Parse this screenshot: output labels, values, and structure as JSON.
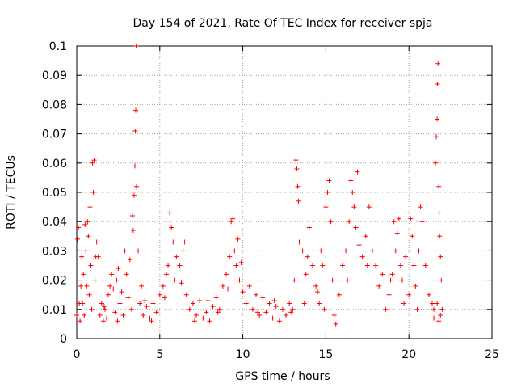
{
  "chart_data": {
    "type": "scatter",
    "title": "Day 154 of 2021, Rate Of TEC Index for receiver spja",
    "xlabel": "GPS time / hours",
    "ylabel": "ROTI / TECUs",
    "xlim": [
      0,
      25
    ],
    "ylim": [
      0,
      0.1
    ],
    "x_ticks": [
      0,
      5,
      10,
      15,
      20,
      25
    ],
    "x_tick_labels": [
      "0",
      "5",
      "10",
      "15",
      "20",
      "25"
    ],
    "y_ticks": [
      0,
      0.01,
      0.02,
      0.03,
      0.04,
      0.05,
      0.06,
      0.07,
      0.08,
      0.09,
      0.1
    ],
    "y_tick_labels": [
      "0",
      "0.01",
      "0.02",
      "0.03",
      "0.04",
      "0.05",
      "0.06",
      "0.07",
      "0.08",
      "0.09",
      "0.1"
    ],
    "grid": true,
    "marker": "+",
    "color": "#ff0000",
    "points": [
      [
        0.0,
        0.008
      ],
      [
        0.05,
        0.034
      ],
      [
        0.1,
        0.038
      ],
      [
        0.15,
        0.012
      ],
      [
        0.2,
        0.006
      ],
      [
        0.3,
        0.028
      ],
      [
        0.4,
        0.022
      ],
      [
        0.5,
        0.039
      ],
      [
        0.55,
        0.03
      ],
      [
        0.6,
        0.018
      ],
      [
        0.65,
        0.04
      ],
      [
        0.7,
        0.035
      ],
      [
        0.75,
        0.015
      ],
      [
        0.8,
        0.045
      ],
      [
        0.85,
        0.025
      ],
      [
        0.9,
        0.01
      ],
      [
        0.95,
        0.06
      ],
      [
        1.0,
        0.05
      ],
      [
        1.05,
        0.061
      ],
      [
        1.1,
        0.02
      ],
      [
        1.2,
        0.033
      ],
      [
        1.3,
        0.028
      ],
      [
        1.4,
        0.008
      ],
      [
        1.5,
        0.012
      ],
      [
        1.6,
        0.006
      ],
      [
        1.7,
        0.01
      ],
      [
        1.8,
        0.007
      ],
      [
        1.9,
        0.015
      ],
      [
        2.0,
        0.018
      ],
      [
        2.1,
        0.022
      ],
      [
        2.2,
        0.017
      ],
      [
        2.3,
        0.009
      ],
      [
        2.4,
        0.02
      ],
      [
        2.5,
        0.024
      ],
      [
        2.6,
        0.012
      ],
      [
        2.7,
        0.016
      ],
      [
        2.8,
        0.008
      ],
      [
        2.9,
        0.03
      ],
      [
        3.0,
        0.022
      ],
      [
        3.1,
        0.014
      ],
      [
        3.2,
        0.027
      ],
      [
        3.3,
        0.01
      ],
      [
        3.4,
        0.037
      ],
      [
        3.45,
        0.049
      ],
      [
        3.5,
        0.059
      ],
      [
        3.52,
        0.071
      ],
      [
        3.55,
        0.078
      ],
      [
        3.58,
        0.1
      ],
      [
        3.6,
        0.052
      ],
      [
        3.7,
        0.03
      ],
      [
        3.8,
        0.012
      ],
      [
        3.9,
        0.018
      ],
      [
        4.0,
        0.008
      ],
      [
        4.2,
        0.011
      ],
      [
        4.4,
        0.007
      ],
      [
        4.6,
        0.012
      ],
      [
        4.8,
        0.009
      ],
      [
        5.0,
        0.015
      ],
      [
        5.2,
        0.018
      ],
      [
        5.4,
        0.022
      ],
      [
        5.5,
        0.025
      ],
      [
        5.6,
        0.043
      ],
      [
        5.7,
        0.038
      ],
      [
        5.8,
        0.033
      ],
      [
        5.9,
        0.02
      ],
      [
        6.0,
        0.028
      ],
      [
        6.2,
        0.025
      ],
      [
        6.4,
        0.03
      ],
      [
        6.5,
        0.033
      ],
      [
        6.6,
        0.015
      ],
      [
        6.8,
        0.01
      ],
      [
        7.0,
        0.012
      ],
      [
        7.2,
        0.008
      ],
      [
        7.4,
        0.013
      ],
      [
        7.6,
        0.007
      ],
      [
        7.8,
        0.009
      ],
      [
        8.0,
        0.006
      ],
      [
        8.2,
        0.011
      ],
      [
        8.4,
        0.014
      ],
      [
        8.6,
        0.01
      ],
      [
        8.8,
        0.018
      ],
      [
        9.0,
        0.022
      ],
      [
        9.2,
        0.028
      ],
      [
        9.3,
        0.04
      ],
      [
        9.4,
        0.041
      ],
      [
        9.5,
        0.03
      ],
      [
        9.6,
        0.025
      ],
      [
        9.7,
        0.034
      ],
      [
        9.8,
        0.02
      ],
      [
        10.0,
        0.016
      ],
      [
        10.2,
        0.012
      ],
      [
        10.4,
        0.018
      ],
      [
        10.6,
        0.01
      ],
      [
        10.8,
        0.015
      ],
      [
        11.0,
        0.008
      ],
      [
        11.2,
        0.014
      ],
      [
        11.4,
        0.009
      ],
      [
        11.6,
        0.012
      ],
      [
        11.8,
        0.007
      ],
      [
        12.0,
        0.011
      ],
      [
        12.2,
        0.006
      ],
      [
        12.4,
        0.01
      ],
      [
        12.6,
        0.008
      ],
      [
        12.8,
        0.012
      ],
      [
        13.0,
        0.01
      ],
      [
        13.1,
        0.02
      ],
      [
        13.2,
        0.061
      ],
      [
        13.25,
        0.058
      ],
      [
        13.3,
        0.052
      ],
      [
        13.35,
        0.047
      ],
      [
        13.4,
        0.033
      ],
      [
        13.6,
        0.03
      ],
      [
        13.8,
        0.022
      ],
      [
        14.0,
        0.038
      ],
      [
        14.2,
        0.025
      ],
      [
        14.4,
        0.018
      ],
      [
        14.5,
        0.016
      ],
      [
        14.6,
        0.012
      ],
      [
        14.8,
        0.025
      ],
      [
        15.0,
        0.045
      ],
      [
        15.1,
        0.05
      ],
      [
        15.2,
        0.054
      ],
      [
        15.3,
        0.04
      ],
      [
        15.4,
        0.02
      ],
      [
        15.5,
        0.008
      ],
      [
        15.6,
        0.005
      ],
      [
        15.8,
        0.015
      ],
      [
        16.0,
        0.025
      ],
      [
        16.2,
        0.03
      ],
      [
        16.4,
        0.04
      ],
      [
        16.5,
        0.054
      ],
      [
        16.6,
        0.05
      ],
      [
        16.7,
        0.045
      ],
      [
        16.8,
        0.038
      ],
      [
        16.9,
        0.057
      ],
      [
        17.0,
        0.032
      ],
      [
        17.2,
        0.028
      ],
      [
        17.4,
        0.035
      ],
      [
        17.6,
        0.045
      ],
      [
        17.8,
        0.03
      ],
      [
        18.0,
        0.025
      ],
      [
        18.2,
        0.018
      ],
      [
        18.4,
        0.022
      ],
      [
        18.6,
        0.01
      ],
      [
        18.8,
        0.015
      ],
      [
        19.0,
        0.022
      ],
      [
        19.1,
        0.04
      ],
      [
        19.2,
        0.03
      ],
      [
        19.3,
        0.036
      ],
      [
        19.4,
        0.041
      ],
      [
        19.5,
        0.025
      ],
      [
        19.6,
        0.02
      ],
      [
        19.8,
        0.028
      ],
      [
        20.0,
        0.015
      ],
      [
        20.1,
        0.041
      ],
      [
        20.2,
        0.035
      ],
      [
        20.3,
        0.025
      ],
      [
        20.4,
        0.018
      ],
      [
        20.6,
        0.03
      ],
      [
        20.7,
        0.045
      ],
      [
        20.8,
        0.04
      ],
      [
        21.0,
        0.025
      ],
      [
        21.2,
        0.015
      ],
      [
        21.4,
        0.012
      ],
      [
        21.5,
        0.01
      ],
      [
        21.6,
        0.06
      ],
      [
        21.65,
        0.069
      ],
      [
        21.7,
        0.075
      ],
      [
        21.72,
        0.087
      ],
      [
        21.75,
        0.094
      ],
      [
        21.8,
        0.052
      ],
      [
        21.82,
        0.043
      ],
      [
        21.85,
        0.035
      ],
      [
        21.9,
        0.028
      ],
      [
        21.95,
        0.02
      ],
      [
        22.0,
        0.01
      ],
      [
        21.9,
        0.008
      ],
      [
        21.8,
        0.006
      ],
      [
        21.7,
        0.012
      ],
      [
        21.5,
        0.007
      ],
      [
        20.5,
        0.01
      ],
      [
        19.7,
        0.012
      ],
      [
        18.9,
        0.02
      ],
      [
        17.5,
        0.025
      ],
      [
        16.3,
        0.02
      ],
      [
        14.9,
        0.01
      ],
      [
        14.7,
        0.03
      ],
      [
        13.9,
        0.028
      ],
      [
        13.7,
        0.012
      ],
      [
        12.9,
        0.009
      ],
      [
        11.9,
        0.013
      ],
      [
        10.9,
        0.009
      ],
      [
        9.9,
        0.026
      ],
      [
        9.1,
        0.017
      ],
      [
        8.5,
        0.009
      ],
      [
        7.9,
        0.013
      ],
      [
        7.1,
        0.006
      ],
      [
        6.3,
        0.019
      ],
      [
        5.3,
        0.014
      ],
      [
        4.5,
        0.006
      ],
      [
        4.1,
        0.013
      ],
      [
        3.35,
        0.042
      ],
      [
        2.45,
        0.006
      ],
      [
        1.65,
        0.011
      ],
      [
        1.15,
        0.028
      ],
      [
        0.45,
        0.008
      ],
      [
        0.25,
        0.018
      ],
      [
        0.35,
        0.012
      ]
    ]
  }
}
